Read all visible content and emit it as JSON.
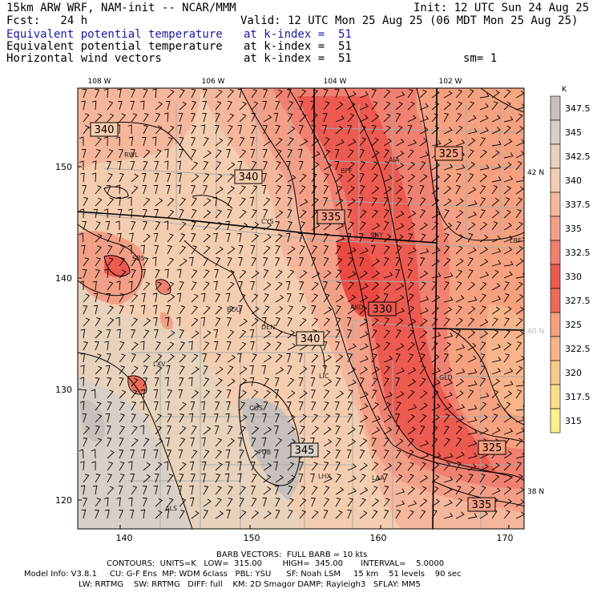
{
  "header": {
    "title": "15km ARW WRF, NAM-init -- NCAR/MMM",
    "init": "Init: 12 UTC Sun 24 Aug 25",
    "fcst": "Fcst:   24 h",
    "valid": "Valid: 12 UTC Mon 25 Aug 25 (06 MDT Mon 25 Aug 25)",
    "fields": [
      {
        "name": "Equivalent potential temperature",
        "level": "at k-index =  51"
      },
      {
        "name": "Equivalent potential temperature",
        "level": "at k-index =  51"
      },
      {
        "name": "Horizontal wind vectors",
        "level": "at k-index =  51"
      }
    ],
    "smoothing": "sm= 1"
  },
  "map": {
    "top_lon_labels": [
      "108 W",
      "106 W",
      "104 W",
      "102 W"
    ],
    "bottom_x_labels": [
      "140",
      "150",
      "160",
      "170"
    ],
    "left_y_labels": [
      "150",
      "140",
      "130",
      "120"
    ],
    "right_lat_labels": [
      "42 N",
      "40 N",
      "38 N"
    ],
    "cities": [
      "RWL",
      "BFF",
      "AIA",
      "CYS",
      "SNY",
      "LBF",
      "SBS",
      "BOU",
      "DEN",
      "AKO",
      "LXV",
      "LIC",
      "COS",
      "GLD",
      "PUB",
      "LHX",
      "LAA",
      "ALS"
    ],
    "contour_labels": [
      "340",
      "340",
      "325",
      "335",
      "330",
      "340",
      "345",
      "325",
      "335"
    ]
  },
  "colorbar": {
    "unit": "K",
    "levels": [
      "347.5",
      "345",
      "342.5",
      "340",
      "337.5",
      "335",
      "332.5",
      "330",
      "327.5",
      "325",
      "322.5",
      "320",
      "317.5",
      "315"
    ],
    "colors": [
      "#c8c0bc",
      "#d8cfc8",
      "#e8d2bc",
      "#f4cdb0",
      "#f5b79c",
      "#f39f88",
      "#f08070",
      "#ed5a50",
      "#ef6a58",
      "#f5a07e",
      "#f7b38a",
      "#f9c88c",
      "#fbdd8c",
      "#fef08a"
    ]
  },
  "footer": {
    "line1": "BARB VECTORS:  FULL BARB = 10 kts",
    "line2": "CONTOURS:  UNITS=K   LOW=  315.00        HIGH=  345.00       INTERVAL=    5.0000",
    "line3": "Model Info: V3.8.1     CU: G-F Ens  MP: WDM 6class   PBL: YSU      SF: Noah LSM     15 km    51 levels    90 sec",
    "line4": "LW: RRTMG    SW: RRTMG   DIFF: full    KM: 2D Smagor DAMP: Rayleigh3   SFLAY: MM5"
  }
}
